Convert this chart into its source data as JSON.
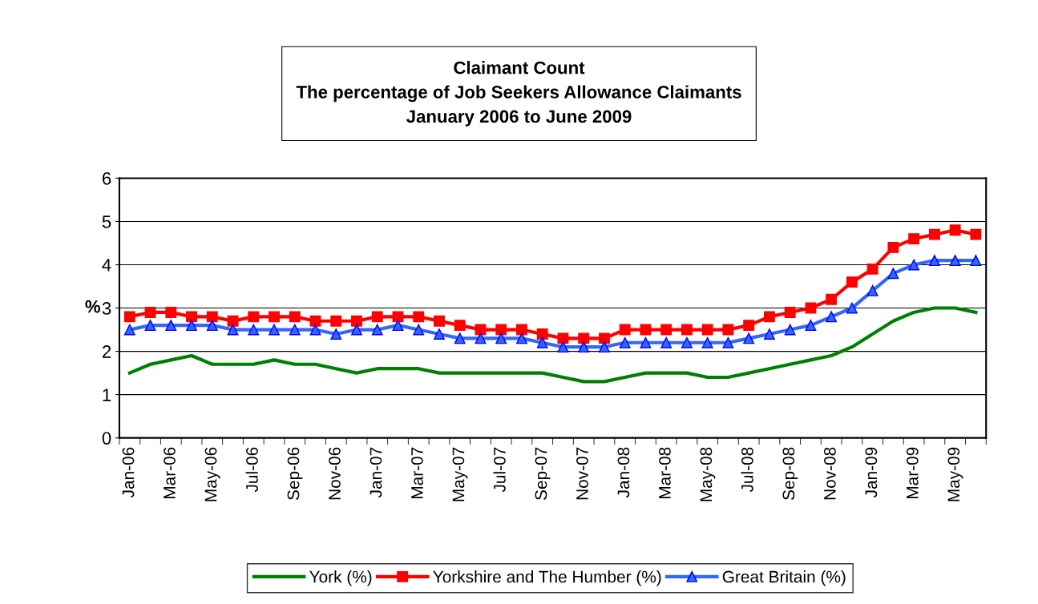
{
  "chart_data": {
    "type": "line",
    "title": "Claimant Count\nThe percentage of Job Seekers Allowance Claimants\nJanuary 2006 to June 2009",
    "ylabel": "%",
    "categories": [
      "Jan-06",
      null,
      "Mar-06",
      null,
      "May-06",
      null,
      "Jul-06",
      null,
      "Sep-06",
      null,
      "Nov-06",
      null,
      "Jan-07",
      null,
      "Mar-07",
      null,
      "May-07",
      null,
      "Jul-07",
      null,
      "Sep-07",
      null,
      "Nov-07",
      null,
      "Jan-08",
      null,
      "Mar-08",
      null,
      "May-08",
      null,
      "Jul-08",
      null,
      "Sep-08",
      null,
      "Nov-08",
      null,
      "Jan-09",
      null,
      "Mar-09",
      null,
      "May-09",
      null
    ],
    "series": [
      {
        "name": "York (%)",
        "color": "#008000",
        "marker": "none",
        "values": [
          1.5,
          1.7,
          1.8,
          1.9,
          1.7,
          1.7,
          1.7,
          1.8,
          1.7,
          1.7,
          1.6,
          1.5,
          1.6,
          1.6,
          1.6,
          1.5,
          1.5,
          1.5,
          1.5,
          1.5,
          1.5,
          1.4,
          1.3,
          1.3,
          1.4,
          1.5,
          1.5,
          1.5,
          1.4,
          1.4,
          1.5,
          1.6,
          1.7,
          1.8,
          1.9,
          2.1,
          2.4,
          2.7,
          2.9,
          3.0,
          3.0,
          2.9
        ]
      },
      {
        "name": "Yorkshire and The Humber (%)",
        "color": "#ff0000",
        "marker": "square",
        "values": [
          2.8,
          2.9,
          2.9,
          2.8,
          2.8,
          2.7,
          2.8,
          2.8,
          2.8,
          2.7,
          2.7,
          2.7,
          2.8,
          2.8,
          2.8,
          2.7,
          2.6,
          2.5,
          2.5,
          2.5,
          2.4,
          2.3,
          2.3,
          2.3,
          2.5,
          2.5,
          2.5,
          2.5,
          2.5,
          2.5,
          2.6,
          2.8,
          2.9,
          3.0,
          3.2,
          3.6,
          3.9,
          4.4,
          4.6,
          4.7,
          4.8,
          4.7
        ]
      },
      {
        "name": "Great Britain (%)",
        "color": "#3366ff",
        "marker": "triangle",
        "values": [
          2.5,
          2.6,
          2.6,
          2.6,
          2.6,
          2.5,
          2.5,
          2.5,
          2.5,
          2.5,
          2.4,
          2.5,
          2.5,
          2.6,
          2.5,
          2.4,
          2.3,
          2.3,
          2.3,
          2.3,
          2.2,
          2.1,
          2.1,
          2.1,
          2.2,
          2.2,
          2.2,
          2.2,
          2.2,
          2.2,
          2.3,
          2.4,
          2.5,
          2.6,
          2.8,
          3.0,
          3.4,
          3.8,
          4.0,
          4.1,
          4.1,
          4.1
        ]
      }
    ],
    "ylim": [
      0,
      6
    ],
    "yticks": [
      0,
      1,
      2,
      3,
      4,
      5,
      6
    ],
    "grid": "y",
    "legend": "bottom",
    "line_style": "solid"
  }
}
